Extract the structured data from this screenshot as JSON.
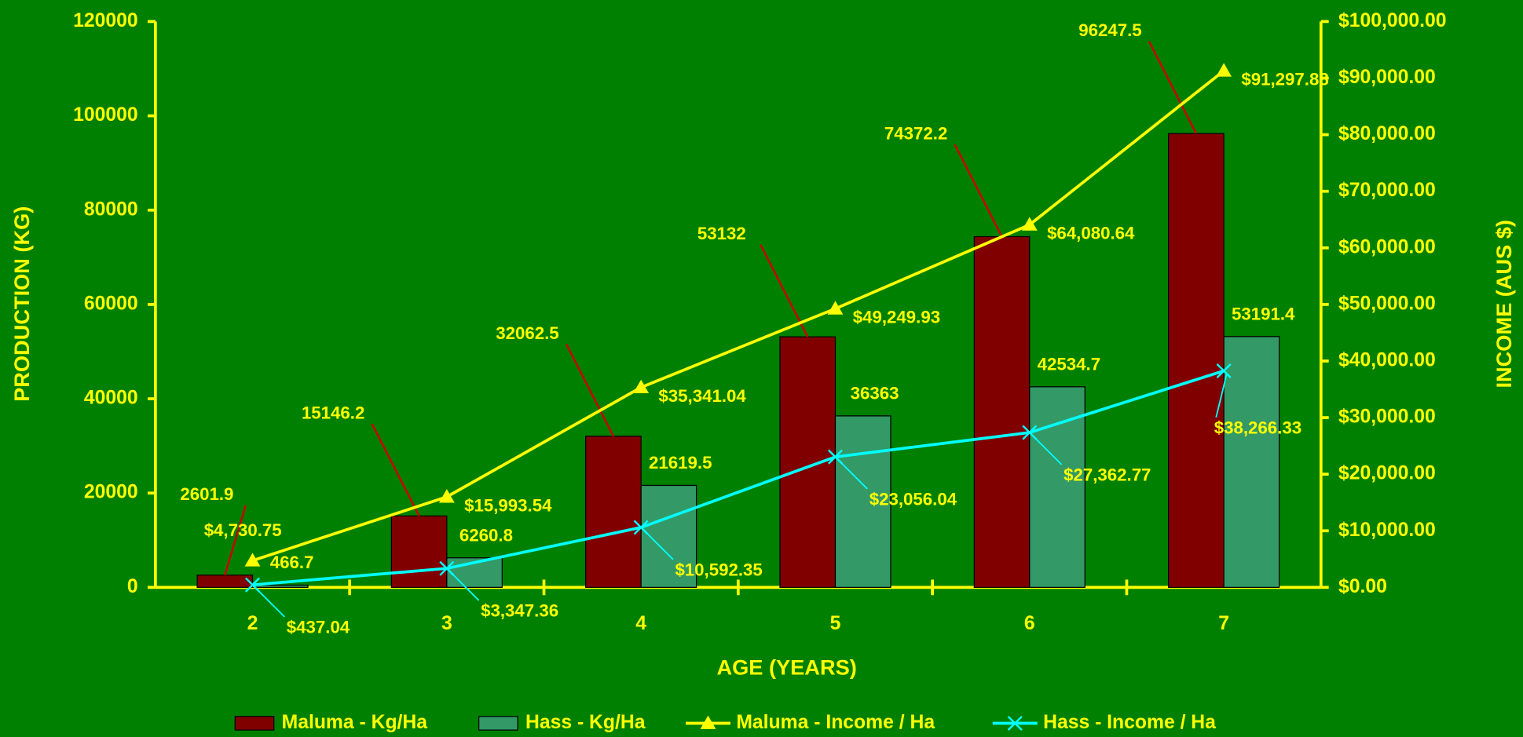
{
  "chart_data": {
    "type": "bar_line_combo",
    "x_label": "AGE (YEARS)",
    "y_label": "PRODUCTION (KG)",
    "y2_label": "INCOME (AUS $)",
    "categories": [
      "2",
      "3",
      "4",
      "5",
      "6",
      "7"
    ],
    "ylim": [
      0,
      120000
    ],
    "yticks": [
      0,
      20000,
      40000,
      60000,
      80000,
      100000,
      120000
    ],
    "y2lim": [
      0,
      100000
    ],
    "y2ticks": [
      {
        "value": 0,
        "label": "$0.00"
      },
      {
        "value": 10000,
        "label": "$10,000.00"
      },
      {
        "value": 20000,
        "label": "$20,000.00"
      },
      {
        "value": 30000,
        "label": "$30,000.00"
      },
      {
        "value": 40000,
        "label": "$40,000.00"
      },
      {
        "value": 50000,
        "label": "$50,000.00"
      },
      {
        "value": 60000,
        "label": "$60,000.00"
      },
      {
        "value": 70000,
        "label": "$70,000.00"
      },
      {
        "value": 80000,
        "label": "$80,000.00"
      },
      {
        "value": 90000,
        "label": "$90,000.00"
      },
      {
        "value": 100000,
        "label": "$100,000.00"
      }
    ],
    "series": [
      {
        "name": "Maluma - Kg/Ha",
        "type": "bar",
        "color": "#800000",
        "values": [
          2601.9,
          15146.2,
          32062.5,
          53132,
          74372.2,
          96247.5
        ]
      },
      {
        "name": "Hass - Kg/Ha",
        "type": "bar",
        "color": "#339966",
        "values": [
          466.7,
          6260.8,
          21619.5,
          36363,
          42534.7,
          53191.4
        ]
      },
      {
        "name": "Maluma - Income / Ha",
        "type": "line",
        "axis": "y2",
        "color": "#ffff00",
        "marker": "triangle",
        "values": [
          4730.75,
          15993.54,
          35341.04,
          49249.93,
          64080.64,
          91297.88
        ],
        "value_labels": [
          "$4,730.75",
          "$15,993.54",
          "$35,341.04",
          "$49,249.93",
          "$64,080.64",
          "$91,297.88"
        ]
      },
      {
        "name": "Hass - Income / Ha",
        "type": "line",
        "axis": "y2",
        "color": "#00ffff",
        "marker": "x",
        "values": [
          437.04,
          3347.36,
          10592.35,
          23056.04,
          27362.77,
          38266.33
        ],
        "value_labels": [
          "$437.04",
          "$3,347.36",
          "$10,592.35",
          "$23,056.04",
          "$27,362.77",
          "$38,266.33"
        ]
      }
    ]
  }
}
